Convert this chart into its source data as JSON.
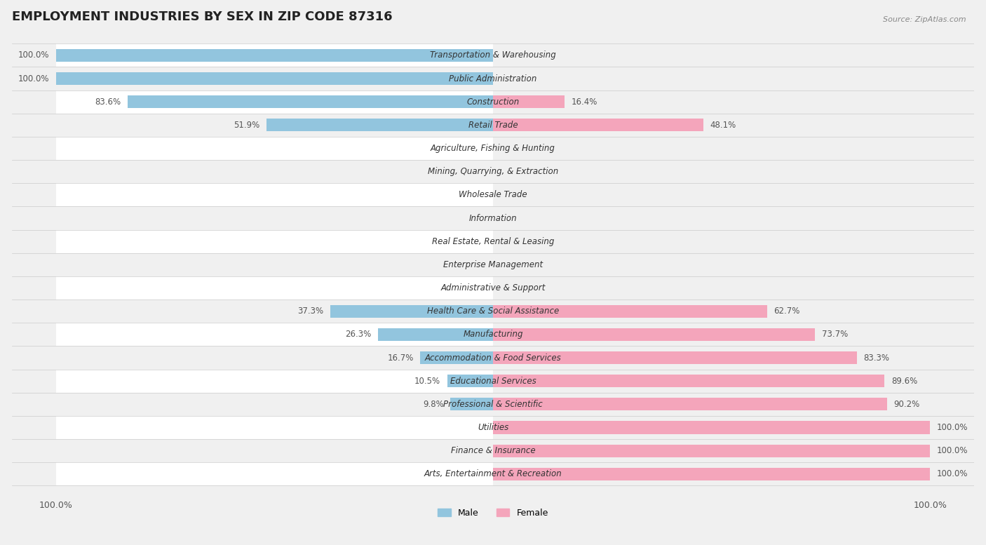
{
  "title": "EMPLOYMENT INDUSTRIES BY SEX IN ZIP CODE 87316",
  "source": "Source: ZipAtlas.com",
  "categories": [
    "Transportation & Warehousing",
    "Public Administration",
    "Construction",
    "Retail Trade",
    "Agriculture, Fishing & Hunting",
    "Mining, Quarrying, & Extraction",
    "Wholesale Trade",
    "Information",
    "Real Estate, Rental & Leasing",
    "Enterprise Management",
    "Administrative & Support",
    "Health Care & Social Assistance",
    "Manufacturing",
    "Accommodation & Food Services",
    "Educational Services",
    "Professional & Scientific",
    "Utilities",
    "Finance & Insurance",
    "Arts, Entertainment & Recreation"
  ],
  "male": [
    100.0,
    100.0,
    83.6,
    51.9,
    0.0,
    0.0,
    0.0,
    0.0,
    0.0,
    0.0,
    0.0,
    37.3,
    26.3,
    16.7,
    10.5,
    9.8,
    0.0,
    0.0,
    0.0
  ],
  "female": [
    0.0,
    0.0,
    16.4,
    48.1,
    0.0,
    0.0,
    0.0,
    0.0,
    0.0,
    0.0,
    0.0,
    62.7,
    73.7,
    83.3,
    89.6,
    90.2,
    100.0,
    100.0,
    100.0
  ],
  "male_color": "#92c5de",
  "female_color": "#f4a5bb",
  "background_color": "#f0f0f0",
  "bar_background_color": "#e8e8e8",
  "title_fontsize": 13,
  "label_fontsize": 8.5,
  "bar_height": 0.55,
  "figsize": [
    14.06,
    7.77
  ]
}
